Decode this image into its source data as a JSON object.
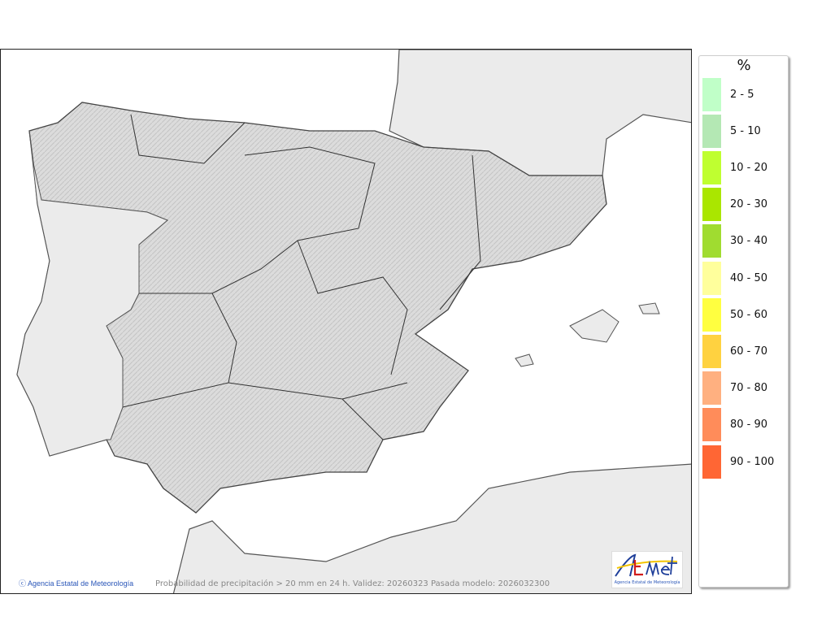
{
  "map": {
    "caption": "Probabilidad de precipitación > 20 mm en 24 h. Validez: 20260323 Pasada modelo: 2026032300",
    "credit": "Agencia Estatal de Meteorología",
    "credit_icon": "copyright-icon",
    "logo_text": "AEmet",
    "logo_subtitle": "Agencia Estatal de Meteorología",
    "colors": {
      "sea": "#ffffff",
      "foreign_land": "#ebebeb",
      "iberia": "#dcdcdc"
    }
  },
  "legend": {
    "title": "%",
    "items": [
      {
        "label": "2 - 5",
        "color": "#c0ffc8"
      },
      {
        "label": "5 - 10",
        "color": "#b4e8b4"
      },
      {
        "label": "10 - 20",
        "color": "#bfff30"
      },
      {
        "label": "20 - 30",
        "color": "#aae600"
      },
      {
        "label": "30 - 40",
        "color": "#a0dc30"
      },
      {
        "label": "40 - 50",
        "color": "#ffff9c"
      },
      {
        "label": "50 - 60",
        "color": "#ffff40"
      },
      {
        "label": "60 - 70",
        "color": "#ffd240"
      },
      {
        "label": "70 - 80",
        "color": "#ffb080"
      },
      {
        "label": "80 - 90",
        "color": "#ff8c5a"
      },
      {
        "label": "90 - 100",
        "color": "#ff6634"
      }
    ]
  }
}
